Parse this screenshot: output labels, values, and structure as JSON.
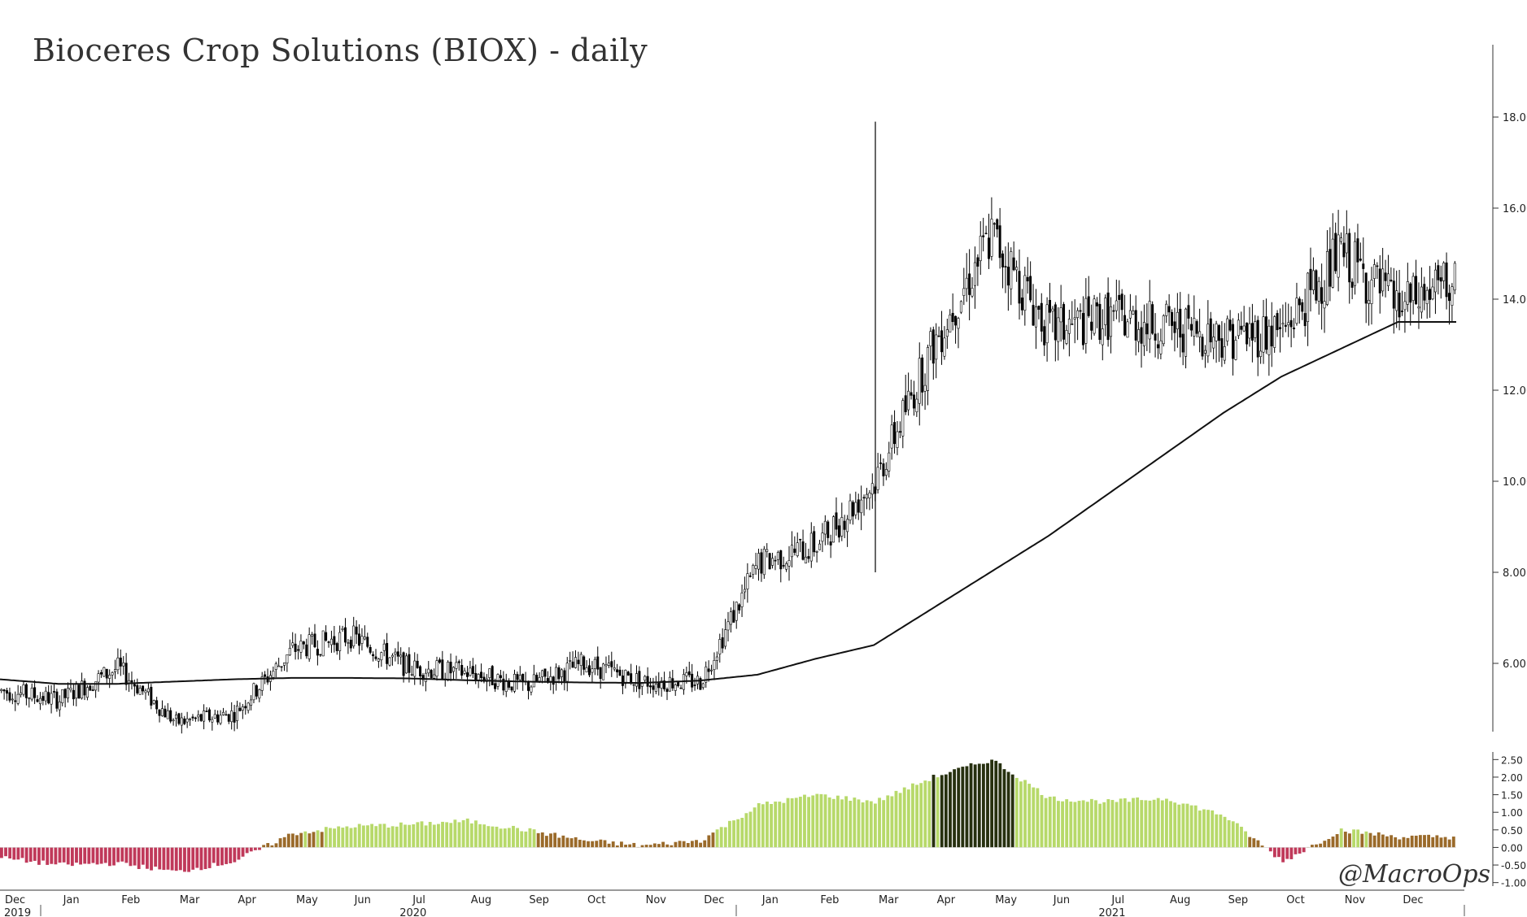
{
  "watermark": "@MacroOps",
  "chart_data": [
    {
      "type": "candlestick",
      "title": "Bioceres Crop Solutions (BIOX) - daily",
      "ylabel": "",
      "ylim": [
        4.5,
        19.5
      ],
      "yticks": [
        "6.00",
        "8.00",
        "10.00",
        "12.00",
        "14.00",
        "16.00",
        "18.00"
      ],
      "x_months": [
        {
          "label": "Dec",
          "year": "2019"
        },
        {
          "label": "Jan"
        },
        {
          "label": "Feb"
        },
        {
          "label": "Mar"
        },
        {
          "label": "Apr"
        },
        {
          "label": "May"
        },
        {
          "label": "Jun"
        },
        {
          "label": "Jul",
          "year": "2020"
        },
        {
          "label": "Aug"
        },
        {
          "label": "Sep"
        },
        {
          "label": "Oct"
        },
        {
          "label": "Nov"
        },
        {
          "label": "Dec"
        },
        {
          "label": "Jan"
        },
        {
          "label": "Feb"
        },
        {
          "label": "Mar"
        },
        {
          "label": "Apr"
        },
        {
          "label": "May"
        },
        {
          "label": "Jun"
        },
        {
          "label": "Jul",
          "year": "2021"
        },
        {
          "label": "Aug"
        },
        {
          "label": "Sep"
        },
        {
          "label": "Oct"
        },
        {
          "label": "Nov"
        },
        {
          "label": "Dec"
        }
      ],
      "year_labels": [
        "2019",
        "2020",
        "2021"
      ],
      "series": [
        {
          "name": "",
          "color": "#000000",
          "price_by_month": [
            5.4,
            5.2,
            5.9,
            4.7,
            4.9,
            6.3,
            6.6,
            5.9,
            5.8,
            5.5,
            6.0,
            5.6,
            5.6,
            8.2,
            8.6,
            10.0,
            13.0,
            15.4,
            13.3,
            13.6,
            13.4,
            13.2,
            13.3,
            15.0,
            13.8
          ],
          "last": 14.4,
          "spike_high": 17.9
        },
        {
          "name": "",
          "type": "line",
          "color": "#111111",
          "ma_by_month": [
            5.65,
            5.55,
            5.55,
            5.6,
            5.65,
            5.68,
            5.68,
            5.67,
            5.63,
            5.6,
            5.58,
            5.57,
            5.62,
            5.75,
            6.1,
            6.4,
            7.2,
            8.0,
            8.8,
            9.7,
            10.6,
            11.5,
            12.3,
            12.9,
            13.5
          ]
        }
      ]
    },
    {
      "type": "bar",
      "title": "",
      "ylim": [
        -1.1,
        2.6
      ],
      "yticks": [
        "2.50",
        "2.00",
        "1.50",
        "1.00",
        "0.50",
        "0.00",
        "-0.50",
        "-1.00"
      ],
      "series": [
        {
          "name": "",
          "values_by_month": [
            -0.3,
            -0.5,
            -0.45,
            -0.7,
            -0.4,
            0.4,
            0.6,
            0.65,
            0.75,
            0.5,
            0.2,
            0.05,
            0.2,
            1.2,
            1.5,
            1.3,
            2.0,
            2.5,
            1.4,
            1.3,
            1.4,
            0.9,
            -0.4,
            0.5,
            0.3
          ],
          "colors": {
            "negative": "#c0395a",
            "low": "#9a6a2a",
            "medium": "#b7d96a",
            "high": "#27300f"
          }
        }
      ]
    }
  ]
}
